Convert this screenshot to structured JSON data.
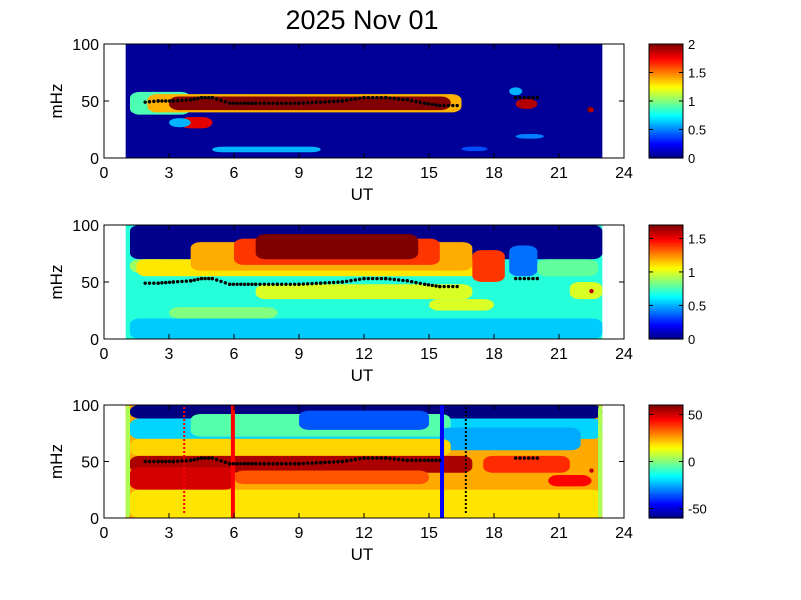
{
  "figure": {
    "title": "2025 Nov 01"
  },
  "colors": {
    "background": "#00008f",
    "band": "#800000",
    "ridge": "#000000",
    "marker_red": "#ff0000",
    "marker_blue": "#0000ff"
  },
  "chart_data": [
    {
      "type": "heatmap",
      "name": "panel-1",
      "xlabel": "UT",
      "ylabel": "mHz",
      "xlim": [
        0,
        24
      ],
      "ylim": [
        0,
        100
      ],
      "xticks": [
        "0",
        "3",
        "6",
        "9",
        "12",
        "15",
        "18",
        "21",
        "24"
      ],
      "yticks": [
        "0",
        "50",
        "100"
      ],
      "data_range_ut": [
        1,
        23
      ],
      "colorbar": {
        "min": 0,
        "max": 2,
        "ticks": [
          "0",
          "0.5",
          "1",
          "1.5",
          "2"
        ]
      },
      "background_value": 0.05,
      "patches": [
        {
          "ut": [
            1.2,
            4.0
          ],
          "mhz": [
            38,
            58
          ],
          "value": 0.9
        },
        {
          "ut": [
            2.0,
            16.5
          ],
          "mhz": [
            40,
            56
          ],
          "value": 1.4
        },
        {
          "ut": [
            3.0,
            16.0
          ],
          "mhz": [
            42,
            54
          ],
          "value": 2.0
        },
        {
          "ut": [
            3.5,
            5.0
          ],
          "mhz": [
            26,
            36
          ],
          "value": 1.8
        },
        {
          "ut": [
            3.0,
            4.0
          ],
          "mhz": [
            27,
            35
          ],
          "value": 0.6
        },
        {
          "ut": [
            5.0,
            10.0
          ],
          "mhz": [
            5,
            10
          ],
          "value": 0.6
        },
        {
          "ut": [
            18.7,
            19.3
          ],
          "mhz": [
            55,
            62
          ],
          "value": 0.6
        },
        {
          "ut": [
            19.0,
            20.0
          ],
          "mhz": [
            43,
            52
          ],
          "value": 1.9
        },
        {
          "ut": [
            19.0,
            20.3
          ],
          "mhz": [
            17,
            21
          ],
          "value": 0.5
        },
        {
          "ut": [
            16.5,
            17.7
          ],
          "mhz": [
            6,
            10
          ],
          "value": 0.4
        },
        {
          "ut": [
            22.3,
            22.6
          ],
          "mhz": [
            40,
            45
          ],
          "value": 2.0
        }
      ],
      "ridge": [
        [
          1.9,
          49
        ],
        [
          2.5,
          50
        ],
        [
          3.2,
          50
        ],
        [
          4.0,
          51
        ],
        [
          4.5,
          53
        ],
        [
          5.0,
          53
        ],
        [
          5.8,
          48
        ],
        [
          7.0,
          48
        ],
        [
          8.0,
          48
        ],
        [
          9.0,
          48
        ],
        [
          10.0,
          49
        ],
        [
          11.0,
          50
        ],
        [
          12.0,
          53
        ],
        [
          13.0,
          53
        ],
        [
          14.0,
          51
        ],
        [
          14.8,
          48
        ],
        [
          15.5,
          46
        ],
        [
          16.3,
          46
        ],
        [
          19.0,
          53
        ],
        [
          20.0,
          53
        ],
        [
          22.5,
          42
        ]
      ],
      "markers": []
    },
    {
      "type": "heatmap",
      "name": "panel-2",
      "xlabel": "UT",
      "ylabel": "mHz",
      "xlim": [
        0,
        24
      ],
      "ylim": [
        0,
        100
      ],
      "xticks": [
        "0",
        "3",
        "6",
        "9",
        "12",
        "15",
        "18",
        "21",
        "24"
      ],
      "yticks": [
        "0",
        "50",
        "100"
      ],
      "data_range_ut": [
        1,
        23
      ],
      "colorbar": {
        "min": 0,
        "max": 1.7,
        "ticks": [
          "0",
          "0.5",
          "1",
          "1.5"
        ]
      },
      "background_value": 0.7,
      "patches": [
        {
          "ut": [
            1.2,
            23.0
          ],
          "mhz": [
            70,
            100
          ],
          "value": 0.02
        },
        {
          "ut": [
            1.2,
            3.0
          ],
          "mhz": [
            58,
            70
          ],
          "value": 0.9
        },
        {
          "ut": [
            1.5,
            17.5
          ],
          "mhz": [
            55,
            70
          ],
          "value": 1.1
        },
        {
          "ut": [
            4.0,
            17.0
          ],
          "mhz": [
            60,
            85
          ],
          "value": 1.2
        },
        {
          "ut": [
            6.0,
            15.5
          ],
          "mhz": [
            65,
            88
          ],
          "value": 1.4
        },
        {
          "ut": [
            7.0,
            14.5
          ],
          "mhz": [
            70,
            92
          ],
          "value": 1.7
        },
        {
          "ut": [
            10.0,
            14.5
          ],
          "mhz": [
            72,
            90
          ],
          "value": 1.7
        },
        {
          "ut": [
            17.0,
            18.5
          ],
          "mhz": [
            50,
            78
          ],
          "value": 1.4
        },
        {
          "ut": [
            18.7,
            20.0
          ],
          "mhz": [
            55,
            82
          ],
          "value": 0.4
        },
        {
          "ut": [
            20.0,
            22.8
          ],
          "mhz": [
            55,
            70
          ],
          "value": 0.8
        },
        {
          "ut": [
            7.0,
            17.0
          ],
          "mhz": [
            35,
            48
          ],
          "value": 1.0
        },
        {
          "ut": [
            15.0,
            18.0
          ],
          "mhz": [
            25,
            35
          ],
          "value": 1.0
        },
        {
          "ut": [
            3.0,
            8.0
          ],
          "mhz": [
            18,
            28
          ],
          "value": 0.85
        },
        {
          "ut": [
            1.2,
            23.0
          ],
          "mhz": [
            0,
            18
          ],
          "value": 0.55
        },
        {
          "ut": [
            21.5,
            23.0
          ],
          "mhz": [
            35,
            50
          ],
          "value": 1.0
        }
      ],
      "ridge": [
        [
          1.9,
          49
        ],
        [
          2.5,
          49
        ],
        [
          3.2,
          50
        ],
        [
          4.0,
          51
        ],
        [
          4.5,
          53
        ],
        [
          5.0,
          53
        ],
        [
          5.8,
          48
        ],
        [
          7.0,
          48
        ],
        [
          8.0,
          48
        ],
        [
          9.0,
          48
        ],
        [
          10.0,
          49
        ],
        [
          11.0,
          50
        ],
        [
          12.0,
          53
        ],
        [
          13.0,
          53
        ],
        [
          14.0,
          51
        ],
        [
          14.8,
          48
        ],
        [
          15.5,
          46
        ],
        [
          16.3,
          46
        ],
        [
          19.0,
          53
        ],
        [
          20.0,
          53
        ],
        [
          22.5,
          42
        ]
      ],
      "markers": []
    },
    {
      "type": "heatmap",
      "name": "panel-3",
      "xlabel": "UT",
      "ylabel": "mHz",
      "xlim": [
        0,
        24
      ],
      "ylim": [
        0,
        100
      ],
      "xticks": [
        "0",
        "3",
        "6",
        "9",
        "12",
        "15",
        "18",
        "21",
        "24"
      ],
      "yticks": [
        "0",
        "50",
        "100"
      ],
      "data_range_ut": [
        1,
        23
      ],
      "colorbar": {
        "min": -60,
        "max": 60,
        "ticks": [
          "-50",
          "0",
          "50"
        ]
      },
      "background_value": 25,
      "patches": [
        {
          "ut": [
            1.2,
            23.0
          ],
          "mhz": [
            88,
            100
          ],
          "value": -60
        },
        {
          "ut": [
            1.2,
            23.0
          ],
          "mhz": [
            70,
            88
          ],
          "value": -20
        },
        {
          "ut": [
            4.0,
            16.0
          ],
          "mhz": [
            72,
            92
          ],
          "value": -5
        },
        {
          "ut": [
            9.0,
            15.0
          ],
          "mhz": [
            78,
            95
          ],
          "value": -35
        },
        {
          "ut": [
            15.5,
            22.0
          ],
          "mhz": [
            60,
            80
          ],
          "value": -25
        },
        {
          "ut": [
            1.2,
            16.0
          ],
          "mhz": [
            55,
            70
          ],
          "value": 20
        },
        {
          "ut": [
            1.2,
            17.0
          ],
          "mhz": [
            40,
            55
          ],
          "value": 55
        },
        {
          "ut": [
            1.2,
            6.0
          ],
          "mhz": [
            25,
            45
          ],
          "value": 50
        },
        {
          "ut": [
            6.0,
            15.0
          ],
          "mhz": [
            30,
            42
          ],
          "value": 35
        },
        {
          "ut": [
            1.2,
            23.0
          ],
          "mhz": [
            0,
            25
          ],
          "value": 18
        },
        {
          "ut": [
            17.5,
            21.5
          ],
          "mhz": [
            40,
            55
          ],
          "value": 40
        },
        {
          "ut": [
            20.5,
            22.5
          ],
          "mhz": [
            28,
            38
          ],
          "value": 45
        },
        {
          "ut": [
            1.0,
            1.2
          ],
          "mhz": [
            0,
            100
          ],
          "value": 5
        },
        {
          "ut": [
            22.8,
            23.0
          ],
          "mhz": [
            0,
            100
          ],
          "value": 5
        }
      ],
      "ridge": [
        [
          1.9,
          50
        ],
        [
          2.5,
          50
        ],
        [
          3.2,
          50
        ],
        [
          4.0,
          51
        ],
        [
          4.5,
          53
        ],
        [
          5.0,
          53
        ],
        [
          5.8,
          48
        ],
        [
          7.0,
          48
        ],
        [
          8.0,
          48
        ],
        [
          9.0,
          48
        ],
        [
          10.0,
          49
        ],
        [
          11.0,
          50
        ],
        [
          12.0,
          53
        ],
        [
          13.0,
          53
        ],
        [
          14.0,
          51
        ],
        [
          14.8,
          51
        ],
        [
          15.5,
          51
        ],
        [
          19.0,
          53
        ],
        [
          20.0,
          53
        ],
        [
          22.5,
          42
        ]
      ],
      "markers": [
        {
          "ut": 5.95,
          "color": "#ff0000",
          "style": "solid"
        },
        {
          "ut": 15.6,
          "color": "#0000ff",
          "style": "solid"
        },
        {
          "ut": 3.7,
          "color": "#ff0000",
          "style": "dotted"
        },
        {
          "ut": 16.7,
          "color": "#000000",
          "style": "dotted"
        }
      ]
    }
  ]
}
